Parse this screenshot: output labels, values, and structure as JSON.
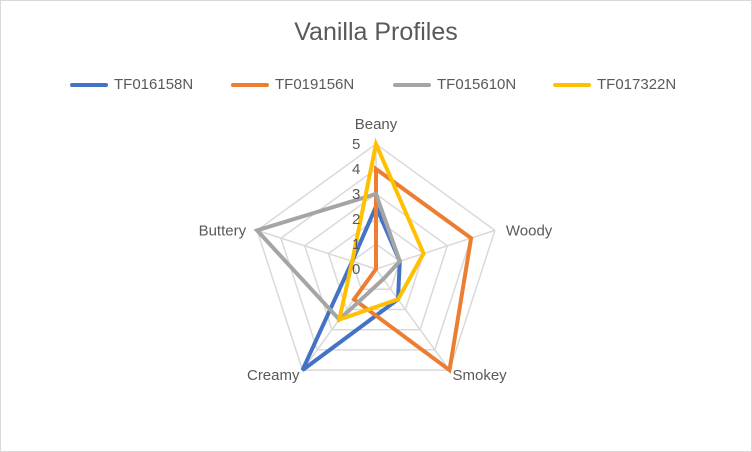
{
  "chart_data": {
    "type": "radar",
    "title": "Vanilla Profiles",
    "axes": [
      "Beany",
      "Woody",
      "Smokey",
      "Creamy",
      "Buttery"
    ],
    "rlim": [
      0,
      5
    ],
    "r_ticks": [
      "0",
      "1",
      "2",
      "3",
      "4",
      "5"
    ],
    "grid": true,
    "legend_position": "top",
    "series": [
      {
        "name": "TF016158N",
        "color": "#4472C4",
        "values": [
          2.5,
          1.0,
          1.5,
          5.0,
          1.0
        ]
      },
      {
        "name": "TF019156N",
        "color": "#ED7D31",
        "values": [
          4.0,
          4.0,
          5.0,
          1.5,
          0.0
        ]
      },
      {
        "name": "TF015610N",
        "color": "#A5A5A5",
        "values": [
          3.0,
          1.0,
          0.5,
          2.5,
          5.0
        ]
      },
      {
        "name": "TF017322N",
        "color": "#FFC000",
        "values": [
          5.0,
          2.0,
          1.5,
          2.5,
          1.0
        ]
      }
    ]
  }
}
